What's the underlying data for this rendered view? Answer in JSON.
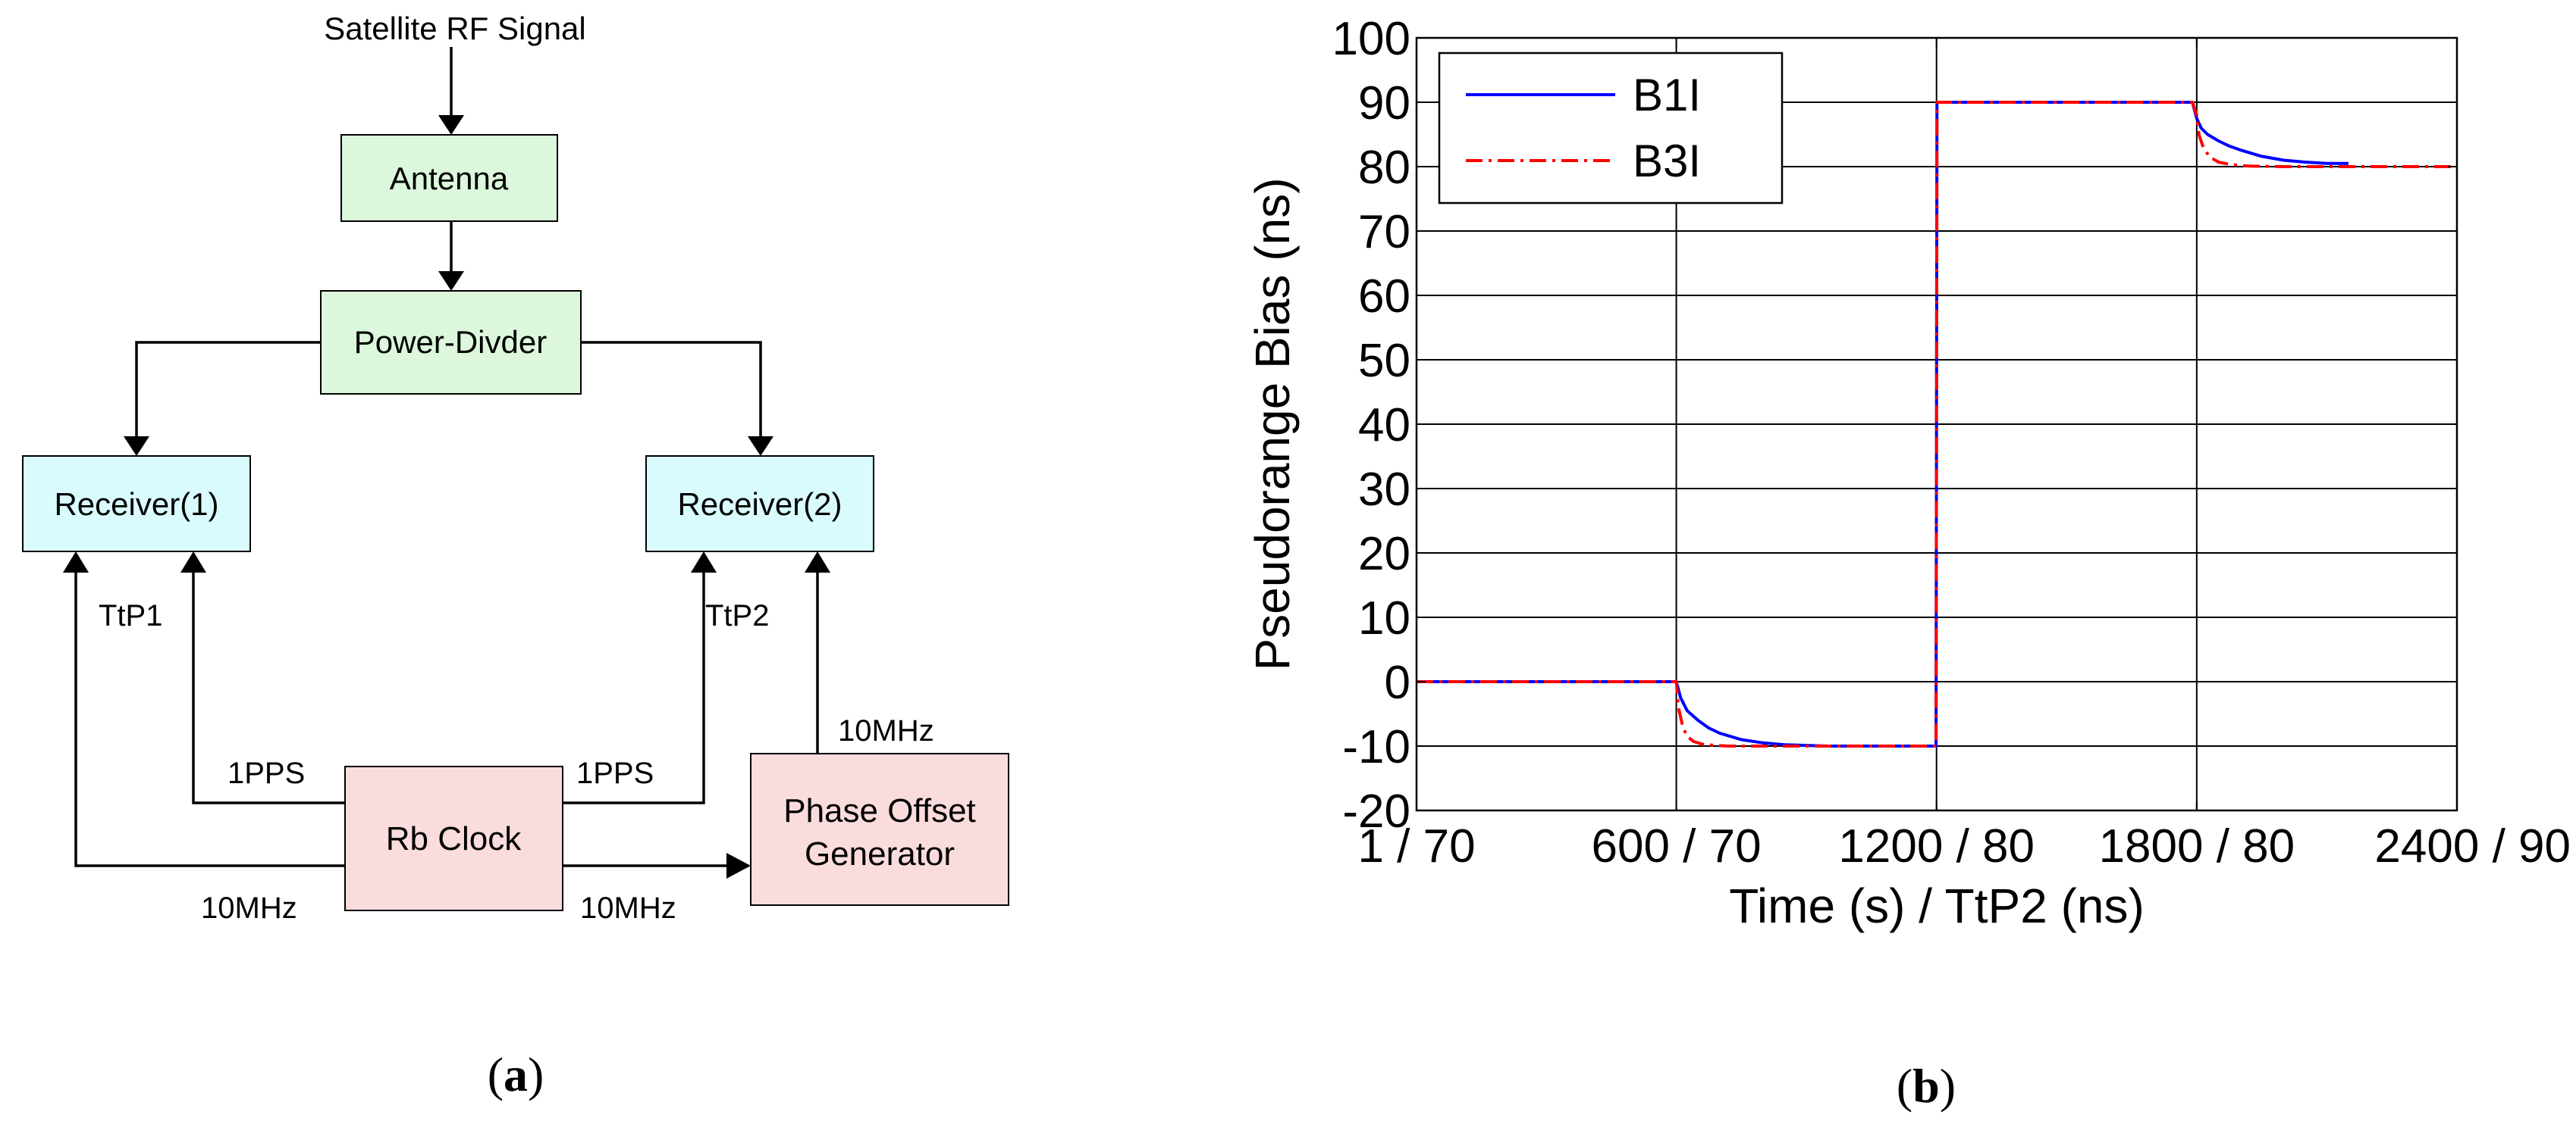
{
  "diagram": {
    "input_label": "Satellite RF Signal",
    "blocks": {
      "antenna": "Antenna",
      "power_divider": "Power-Divder",
      "receiver1": "Receiver(1)",
      "receiver2": "Receiver(2)",
      "rb_clock": "Rb Clock",
      "phase_offset_line1": "Phase Offset",
      "phase_offset_line2": "Generator"
    },
    "signals": {
      "ttp1": "TtP1",
      "ttp2": "TtP2",
      "pps_left": "1PPS",
      "pps_right": "1PPS",
      "tenmhz_left": "10MHz",
      "tenmhz_mid": "10MHz",
      "tenmhz_top": "10MHz"
    },
    "colors": {
      "green": "#dcf7dc",
      "cyan": "#d9fbfd",
      "pink": "#fadcdc"
    },
    "caption": {
      "open": "(",
      "letter": "a",
      "close": ")"
    }
  },
  "chart_data": {
    "type": "line",
    "title": "",
    "xlabel": "Time (s) / TtP2 (ns)",
    "ylabel": "Pseudorange Bias (ns)",
    "xlim": [
      1,
      2400
    ],
    "ylim": [
      -20,
      100
    ],
    "grid": true,
    "x_ticks": [
      1,
      600,
      1200,
      1800,
      2400
    ],
    "x_tick_labels": [
      "1 / 70",
      "600 / 70",
      "1200 / 80",
      "1800 / 80",
      "2400 / 90"
    ],
    "y_ticks": [
      -20,
      -10,
      0,
      10,
      20,
      30,
      40,
      50,
      60,
      70,
      80,
      90,
      100
    ],
    "y_tick_labels": [
      "-20",
      "-10",
      "0",
      "10",
      "20",
      "30",
      "40",
      "50",
      "60",
      "70",
      "80",
      "90",
      "100"
    ],
    "legend_position": "top-left",
    "series": [
      {
        "name": "B1I",
        "color": "#0000ff",
        "style": "solid",
        "x": [
          1,
          600,
          610,
          625,
          650,
          675,
          700,
          750,
          800,
          850,
          900,
          950,
          1000,
          1050,
          1100,
          1150,
          1199,
          1200,
          1201,
          1790,
          1800,
          1810,
          1825,
          1850,
          1875,
          1900,
          1950,
          2000,
          2050,
          2100,
          2150
        ],
        "y": [
          0,
          0,
          -2.5,
          -4.5,
          -6,
          -7.2,
          -8,
          -9,
          -9.5,
          -9.8,
          -9.9,
          -10,
          -10,
          -10,
          -10,
          -10,
          -10,
          40,
          90,
          90,
          87.5,
          86,
          85,
          84,
          83.2,
          82.6,
          81.6,
          81,
          80.7,
          80.5,
          80.5
        ]
      },
      {
        "name": "B3I",
        "color": "#ff0000",
        "style": "dashdot",
        "x": [
          1,
          560,
          600,
          605,
          615,
          625,
          640,
          660,
          690,
          720,
          800,
          900,
          1000,
          1100,
          1199,
          1200,
          1201,
          1790,
          1800,
          1805,
          1815,
          1830,
          1850,
          1880,
          1920,
          2000,
          2100,
          2200,
          2300,
          2400
        ],
        "y": [
          0,
          0,
          0,
          -4,
          -7,
          -8.5,
          -9.3,
          -9.7,
          -9.9,
          -10,
          -10,
          -10,
          -10,
          -10,
          -10,
          40,
          90,
          90,
          88,
          85,
          83,
          81.5,
          80.7,
          80.3,
          80.1,
          80,
          80,
          80,
          80,
          80
        ]
      }
    ],
    "caption": {
      "open": "(",
      "letter": "b",
      "close": ")"
    }
  }
}
